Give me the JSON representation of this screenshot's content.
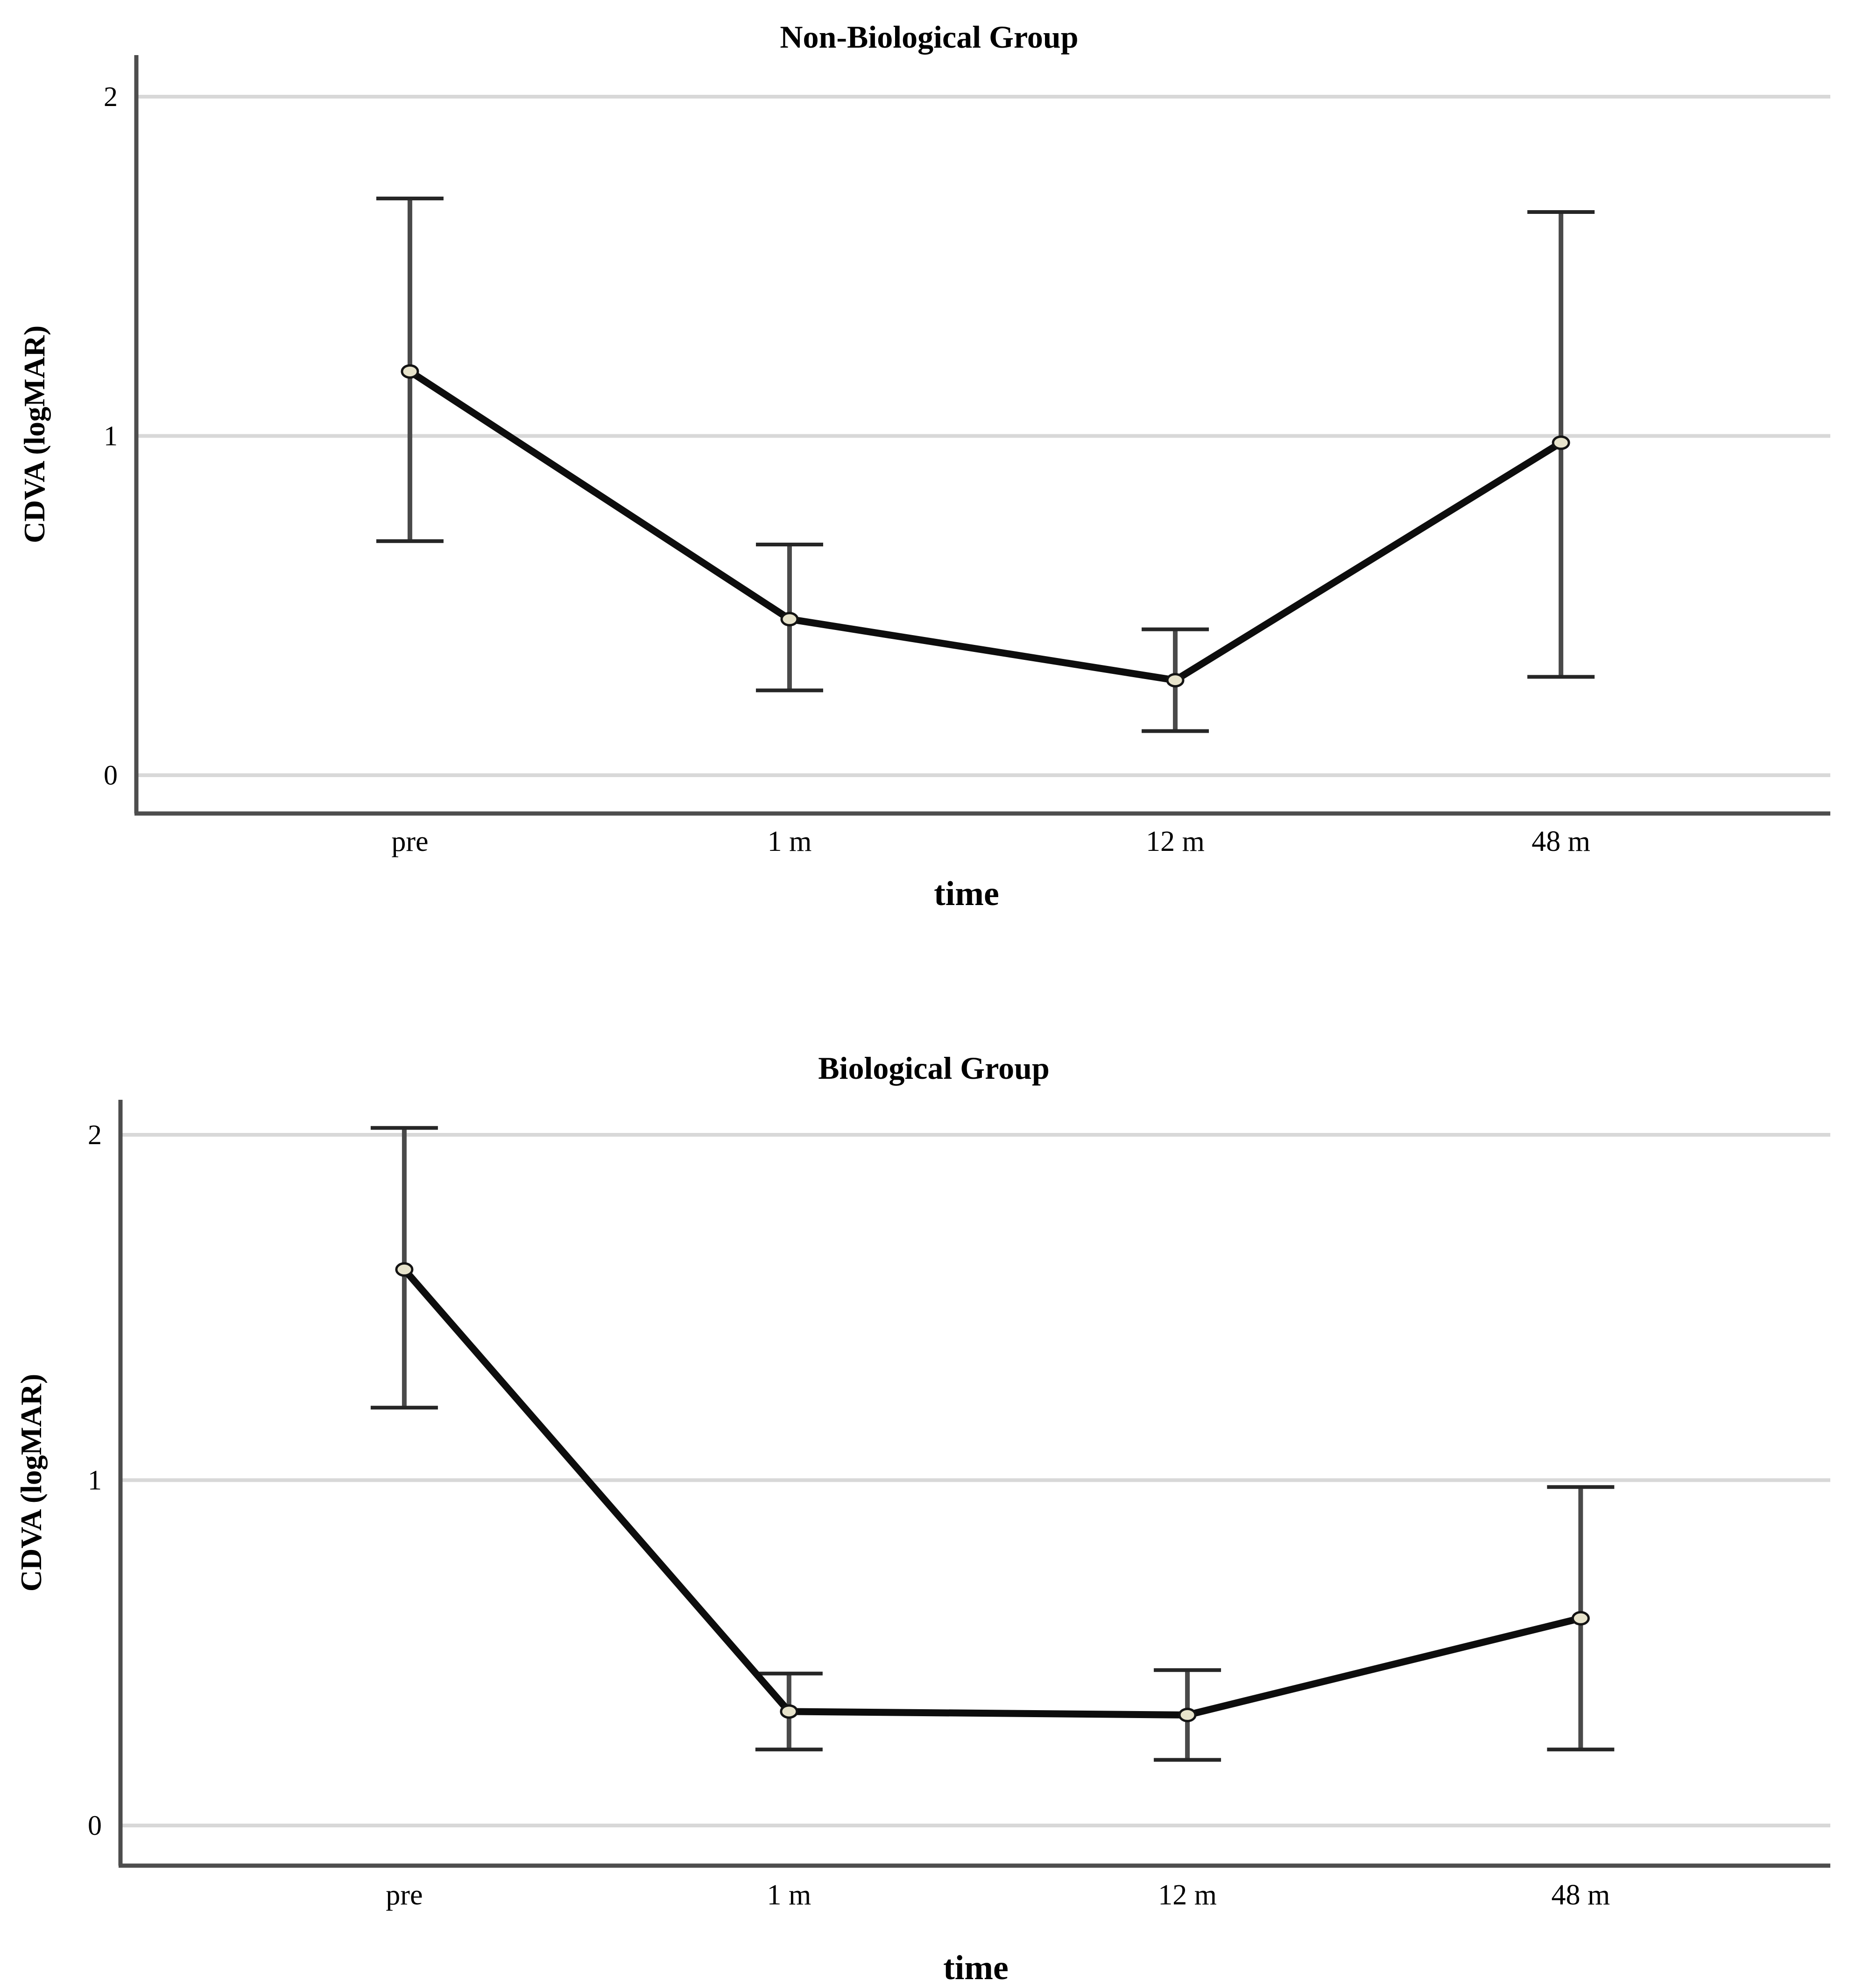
{
  "page": {
    "background": "#ffffff"
  },
  "chart_data": [
    {
      "type": "line",
      "title": "Non-Biological Group",
      "xlabel": "time",
      "ylabel": "CDVA (logMAR)",
      "categories": [
        "pre",
        "1 m",
        "12 m",
        "48 m"
      ],
      "yticks": [
        0,
        1,
        2
      ],
      "ylim": [
        -0.12,
        2.12
      ],
      "grid": "horizontal",
      "legend": "none",
      "marker": "circle",
      "error_bars": true,
      "series": [
        {
          "name": "mean CDVA (logMAR)",
          "values": [
            1.19,
            0.46,
            0.28,
            0.98
          ]
        },
        {
          "name": "error lower bound",
          "values": [
            0.69,
            0.25,
            0.13,
            0.29
          ]
        },
        {
          "name": "error upper bound",
          "values": [
            1.7,
            0.68,
            0.43,
            1.66
          ]
        }
      ]
    },
    {
      "type": "line",
      "title": "Biological Group",
      "xlabel": "time",
      "ylabel": "CDVA (logMAR)",
      "categories": [
        "pre",
        "1 m",
        "12 m",
        "48 m"
      ],
      "yticks": [
        0,
        1,
        2
      ],
      "ylim": [
        -0.12,
        2.12
      ],
      "grid": "horizontal",
      "legend": "none",
      "marker": "circle",
      "error_bars": true,
      "series": [
        {
          "name": "mean CDVA (logMAR)",
          "values": [
            1.61,
            0.33,
            0.32,
            0.6
          ]
        },
        {
          "name": "error lower bound",
          "values": [
            1.21,
            0.22,
            0.19,
            0.22
          ]
        },
        {
          "name": "error upper bound",
          "values": [
            2.02,
            0.44,
            0.45,
            0.98
          ]
        }
      ]
    }
  ],
  "style": {
    "grid_color": "#d8d8d8",
    "axis_color": "#4d4d4d",
    "errorbar_color": "#4a4a4a",
    "cap_color": "#262626",
    "line_color": "#0d0d0d",
    "marker_fill": "#e7e3cb",
    "marker_stroke": "#141414",
    "text_color": "#000000"
  }
}
